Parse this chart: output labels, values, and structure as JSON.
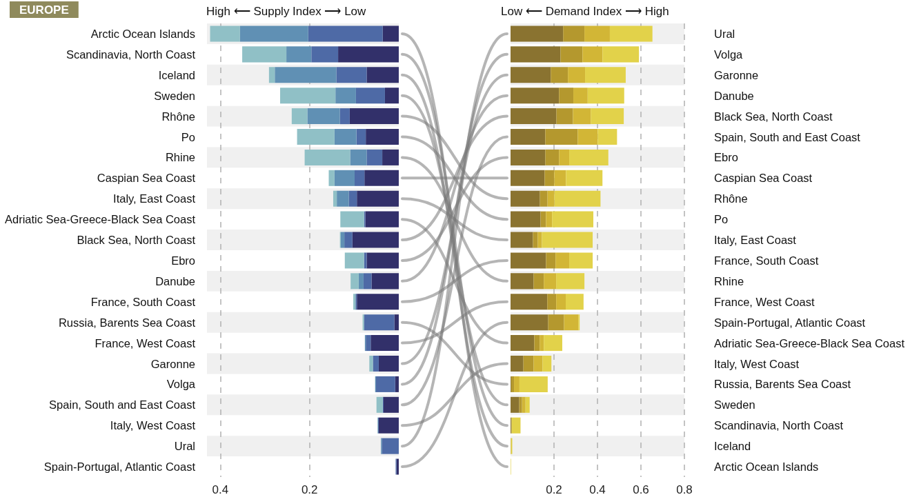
{
  "chart_data": [
    {
      "type": "bar",
      "title": "EUROPE",
      "xlabel": "High ⟵ Supply Index ⟶ Low",
      "orientation": "horizontal",
      "stacked": true,
      "grid": "x",
      "categories": [
        "Arctic Ocean Islands",
        "Scandinavia, North Coast",
        "Iceland",
        "Sweden",
        "Rhône",
        "Po",
        "Rhine",
        "Caspian Sea Coast",
        "Italy, East Coast",
        "Adriatic Sea-Greece-Black Sea Coast",
        "Black Sea, North Coast",
        "Ebro",
        "Danube",
        "France, South Coast",
        "Russia, Barents Sea Coast",
        "France, West Coast",
        "Garonne",
        "Volga",
        "Spain, South and East Coast",
        "Italy, West Coast",
        "Ural",
        "Spain-Portugal, Atlantic Coast"
      ],
      "xlim": [
        0.43,
        0
      ],
      "xticks": [
        0.4,
        0.2
      ],
      "series": [
        {
          "color": "#32306a",
          "values": [
            0.036,
            0.136,
            0.072,
            0.031,
            0.11,
            0.074,
            0.037,
            0.077,
            0.094,
            0.075,
            0.104,
            0.072,
            0.061,
            0.094,
            0.01,
            0.063,
            0.045,
            0.008,
            0.034,
            0.045,
            0,
            0.005
          ]
        },
        {
          "color": "#4e6aa6",
          "values": [
            0.167,
            0.06,
            0.068,
            0.065,
            0.022,
            0.021,
            0.035,
            0.022,
            0.018,
            0.003,
            0.018,
            0.006,
            0.018,
            0.003,
            0.068,
            0.011,
            0.013,
            0.043,
            0.002,
            0.002,
            0.038,
            0.002
          ]
        },
        {
          "color": "#6090b4",
          "values": [
            0.153,
            0.056,
            0.138,
            0.046,
            0.073,
            0.049,
            0.037,
            0.045,
            0.027,
            0,
            0.008,
            0,
            0.011,
            0,
            0,
            0.002,
            0,
            0.002,
            0,
            0,
            0.002,
            0
          ]
        },
        {
          "color": "#90c0c6",
          "values": [
            0.067,
            0.099,
            0.013,
            0.124,
            0.035,
            0.084,
            0.102,
            0.013,
            0.008,
            0.053,
            0.002,
            0.043,
            0.018,
            0.005,
            0.003,
            0,
            0.008,
            0,
            0.014,
            0.001,
            0,
            0
          ]
        }
      ]
    },
    {
      "type": "bar",
      "xlabel": "Low ⟵ Demand Index ⟶ High",
      "orientation": "horizontal",
      "stacked": true,
      "grid": "x",
      "categories": [
        "Ural",
        "Volga",
        "Garonne",
        "Danube",
        "Black Sea, North Coast",
        "Spain, South and East Coast",
        "Ebro",
        "Caspian Sea Coast",
        "Rhône",
        "Po",
        "Italy, East Coast",
        "France, South Coast",
        "Rhine",
        "France, West Coast",
        "Spain-Portugal, Atlantic Coast",
        "Adriatic Sea-Greece-Black Sea Coast",
        "Italy, West Coast",
        "Russia, Barents Sea Coast",
        "Sweden",
        "Scandinavia, North Coast",
        "Iceland",
        "Arctic Ocean Islands"
      ],
      "xlim": [
        0,
        0.8
      ],
      "xticks": [
        0.2,
        0.4,
        0.6,
        0.8
      ],
      "series": [
        {
          "color": "#8a7330",
          "values": [
            0.242,
            0.23,
            0.185,
            0.223,
            0.211,
            0.16,
            0.16,
            0.157,
            0.135,
            0.138,
            0.103,
            0.163,
            0.106,
            0.169,
            0.173,
            0.109,
            0.059,
            0.003,
            0.04,
            0.005,
            0,
            0
          ]
        },
        {
          "color": "#b4982e",
          "values": [
            0.098,
            0.101,
            0.079,
            0.066,
            0.076,
            0.149,
            0.063,
            0.044,
            0.035,
            0.025,
            0.022,
            0.044,
            0.047,
            0.041,
            0.073,
            0.025,
            0.047,
            0.013,
            0.013,
            0,
            0.002,
            0
          ]
        },
        {
          "color": "#d2b636",
          "values": [
            0.117,
            0.092,
            0.079,
            0.066,
            0.082,
            0.092,
            0.047,
            0.054,
            0.032,
            0.028,
            0.019,
            0.063,
            0.057,
            0.044,
            0.066,
            0.019,
            0.041,
            0.025,
            0.016,
            0,
            0,
            0
          ]
        },
        {
          "color": "#e2d24a",
          "values": [
            0.196,
            0.168,
            0.187,
            0.168,
            0.152,
            0.089,
            0.18,
            0.168,
            0.212,
            0.19,
            0.234,
            0.108,
            0.13,
            0.082,
            0.006,
            0.085,
            0.041,
            0.13,
            0.019,
            0.041,
            0.006,
            0.002
          ]
        }
      ]
    }
  ]
}
